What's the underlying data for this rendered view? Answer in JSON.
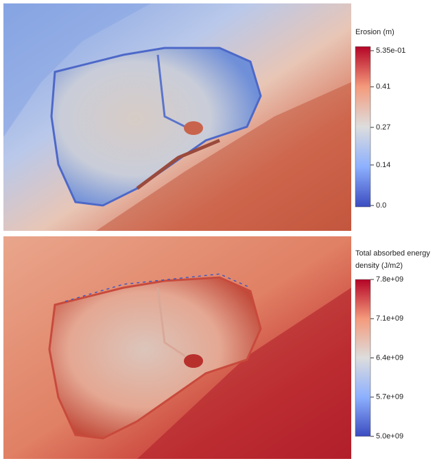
{
  "panels": [
    {
      "colorbar": {
        "title": [
          "Erosion (m)"
        ],
        "ticks": [
          {
            "value": 0.535,
            "label": "5.35e-01"
          },
          0.41,
          0.27,
          0.14,
          {
            "value": 0,
            "label": "0.0"
          }
        ]
      }
    },
    {
      "colorbar": {
        "title": [
          "Total absorbed energy",
          "density (J/m2)"
        ],
        "ticks": [
          {
            "value": 7800000000,
            "label": "7.8e+09"
          },
          {
            "value": 7100000000,
            "label": "7.1e+09"
          },
          {
            "value": 6400000000,
            "label": "6.4e+09"
          },
          {
            "value": 5700000000,
            "label": "5.7e+09"
          },
          {
            "value": 5000000000,
            "label": "5.0e+09"
          }
        ]
      }
    }
  ]
}
